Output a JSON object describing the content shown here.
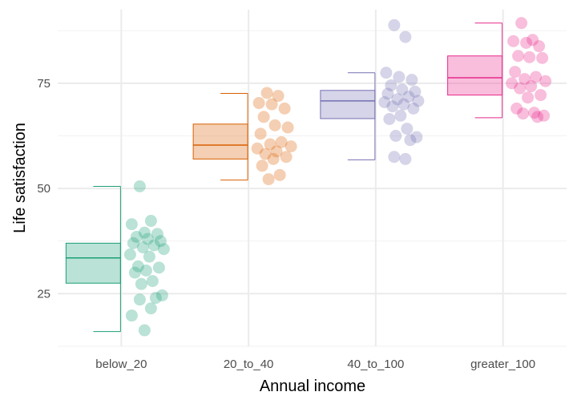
{
  "chart_data": {
    "type": "boxplot-with-jitter",
    "xlabel": "Annual income",
    "ylabel": "Life satisfaction",
    "categories": [
      "below_20",
      "20_to_40",
      "40_to_100",
      "greater_100"
    ],
    "yticks": [
      25,
      50,
      75
    ],
    "ylim": [
      12.5,
      92.5
    ],
    "grid": true,
    "series": [
      {
        "category": "below_20",
        "color": "#1b9e77",
        "box": {
          "min": 16.0,
          "q1": 27.5,
          "median": 33.5,
          "q3": 37.0,
          "max": 50.5
        },
        "points": [
          50.5,
          42.3,
          41.5,
          39.5,
          39.2,
          38.5,
          38.0,
          37.5,
          37.0,
          36.5,
          36.0,
          35.6,
          34.3,
          33.8,
          31.5,
          31.2,
          30.5,
          30.0,
          28.0,
          27.3,
          24.6,
          24.0,
          23.6,
          21.5,
          19.8,
          16.3
        ]
      },
      {
        "category": "20_to_40",
        "color": "#d95f02",
        "box": {
          "min": 52.0,
          "q1": 57.0,
          "median": 60.3,
          "q3": 65.3,
          "max": 72.6
        },
        "points": [
          72.7,
          72.0,
          70.3,
          70.0,
          69.0,
          67.0,
          65.0,
          64.5,
          63.0,
          61.0,
          60.5,
          60.0,
          59.5,
          58.8,
          58.2,
          57.5,
          57.0,
          55.4,
          53.2,
          52.2
        ]
      },
      {
        "category": "40_to_100",
        "color": "#7570b3",
        "box": {
          "min": 56.8,
          "q1": 66.6,
          "median": 70.8,
          "q3": 73.3,
          "max": 77.5
        },
        "points": [
          88.8,
          86.0,
          77.5,
          76.5,
          75.8,
          74.5,
          73.5,
          73.0,
          72.5,
          71.8,
          71.2,
          70.8,
          70.5,
          70.0,
          69.5,
          69.0,
          67.3,
          66.5,
          64.2,
          62.5,
          62.2,
          61.5,
          57.5,
          57.0
        ]
      },
      {
        "category": "greater_100",
        "color": "#e7298a",
        "box": {
          "min": 66.8,
          "q1": 72.2,
          "median": 76.3,
          "q3": 81.5,
          "max": 89.3
        },
        "points": [
          89.3,
          85.3,
          85.0,
          84.6,
          83.8,
          81.5,
          81.2,
          81.0,
          77.7,
          76.5,
          76.0,
          75.5,
          75.0,
          74.3,
          73.8,
          72.2,
          71.6,
          69.0,
          68.0,
          67.8,
          67.3,
          67.0
        ]
      }
    ]
  }
}
